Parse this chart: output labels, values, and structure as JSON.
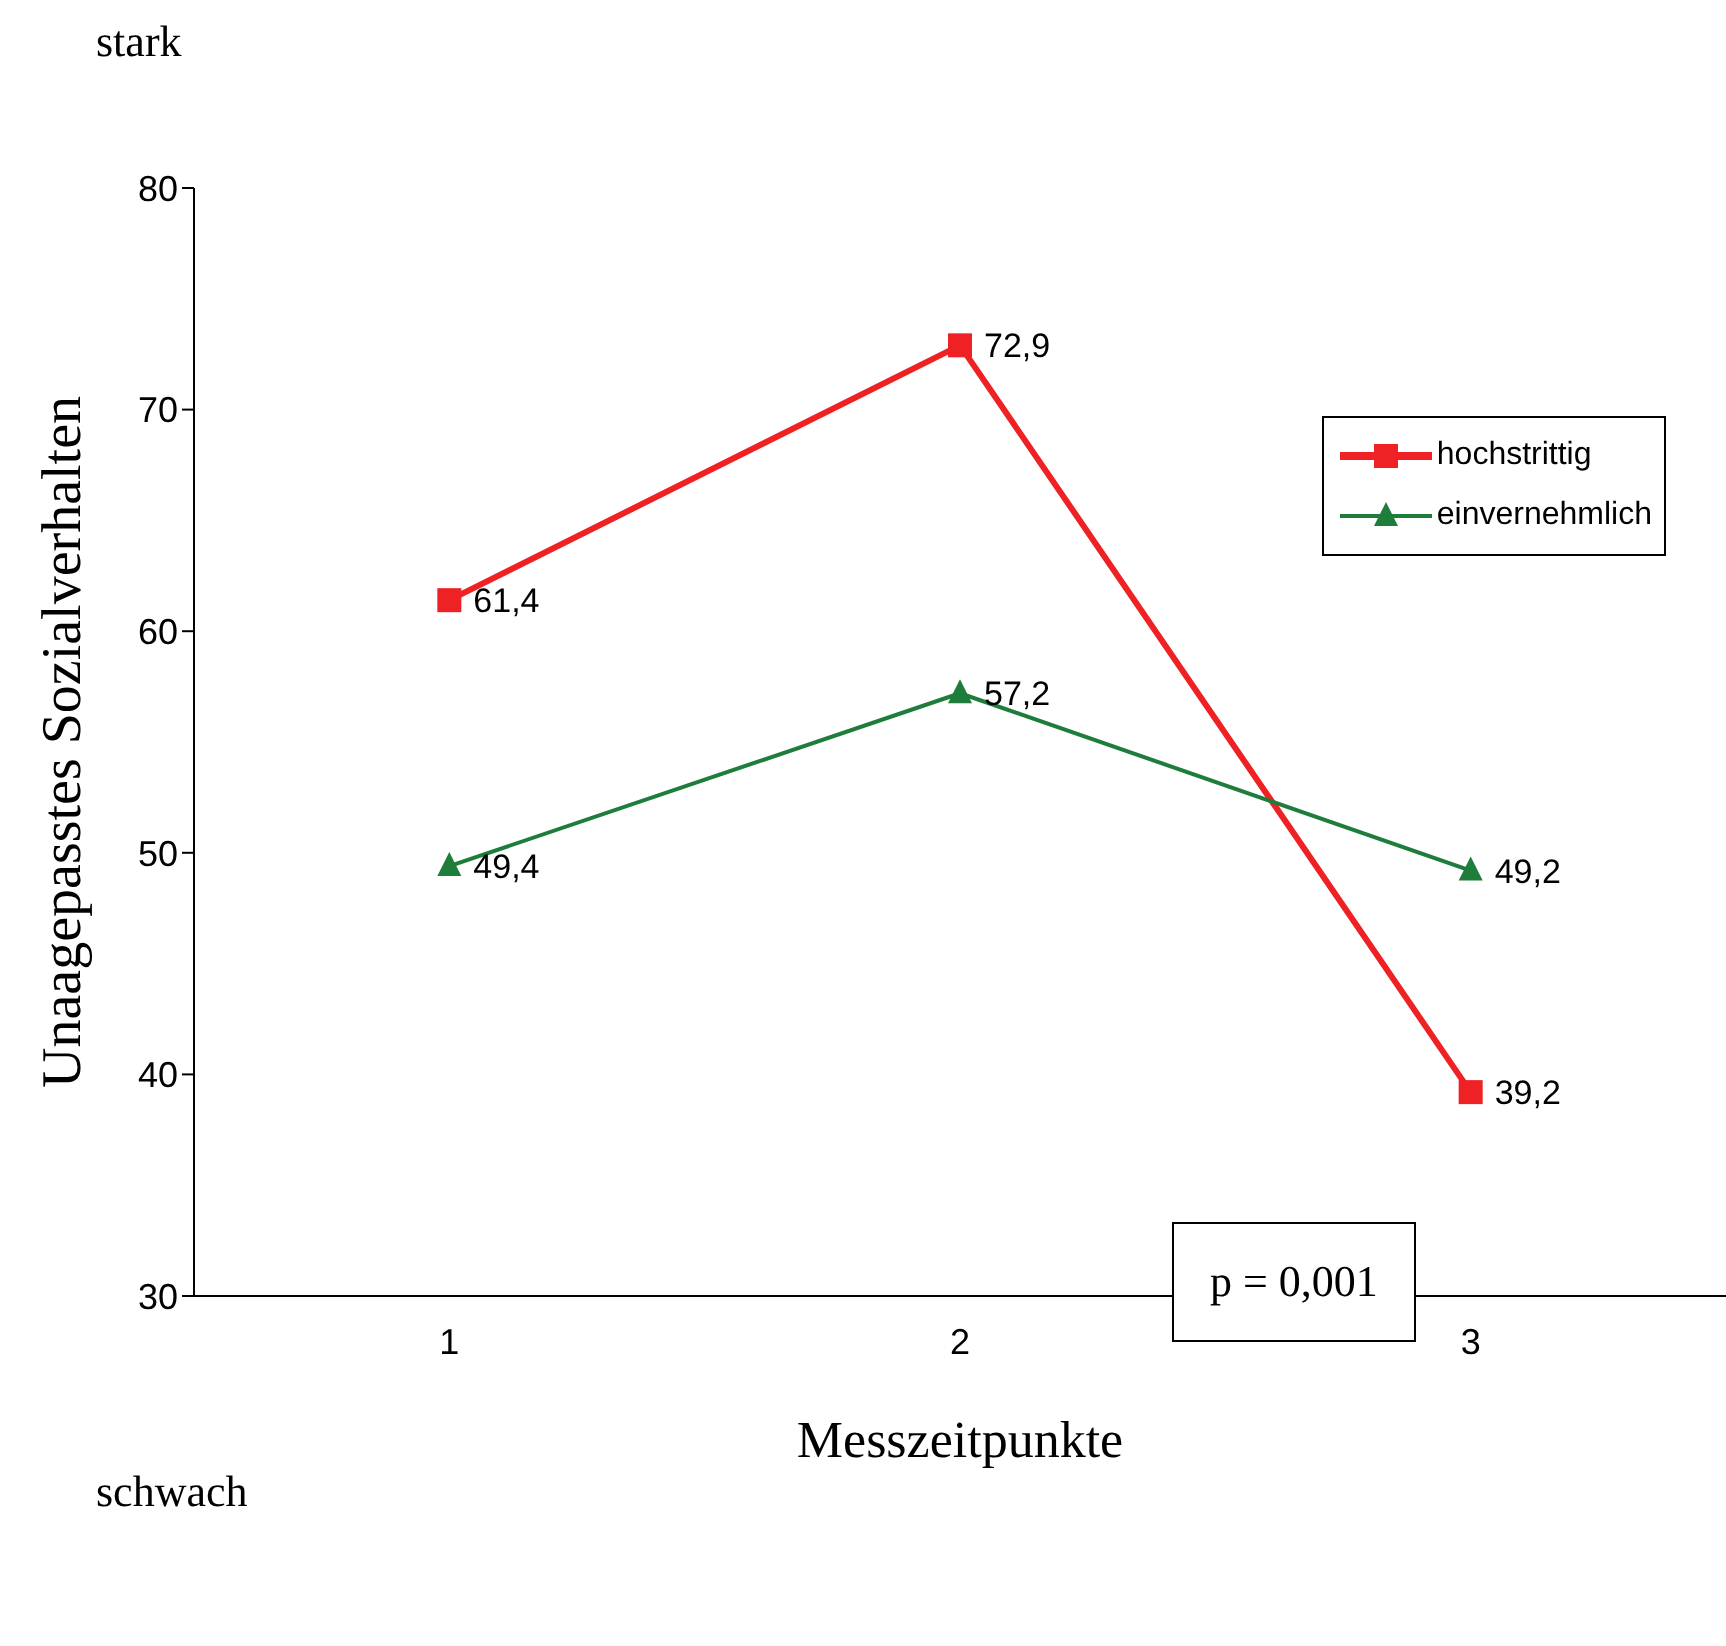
{
  "chart_data": {
    "type": "line",
    "xlabel": "Messzeitpunkte",
    "ylabel": "Unaagepasstes Sozialverhalten",
    "categories": [
      "1",
      "2",
      "3"
    ],
    "series": [
      {
        "name": "hochstrittig",
        "color": "#ee2224",
        "marker": "square",
        "values": [
          61.4,
          72.9,
          39.2
        ],
        "value_labels": [
          "61,4",
          "72,9",
          "39,2"
        ]
      },
      {
        "name": "einvernehmlich",
        "color": "#1e7d3a",
        "marker": "triangle",
        "values": [
          49.4,
          57.2,
          49.2
        ],
        "value_labels": [
          "49,4",
          "57,2",
          "49,2"
        ]
      }
    ],
    "ylim": [
      30,
      80
    ],
    "yticks": [
      30,
      40,
      50,
      60,
      70,
      80
    ],
    "grid": false,
    "legend": "top right",
    "annotations": [
      "stark",
      "schwach",
      "p = 0,001"
    ]
  }
}
